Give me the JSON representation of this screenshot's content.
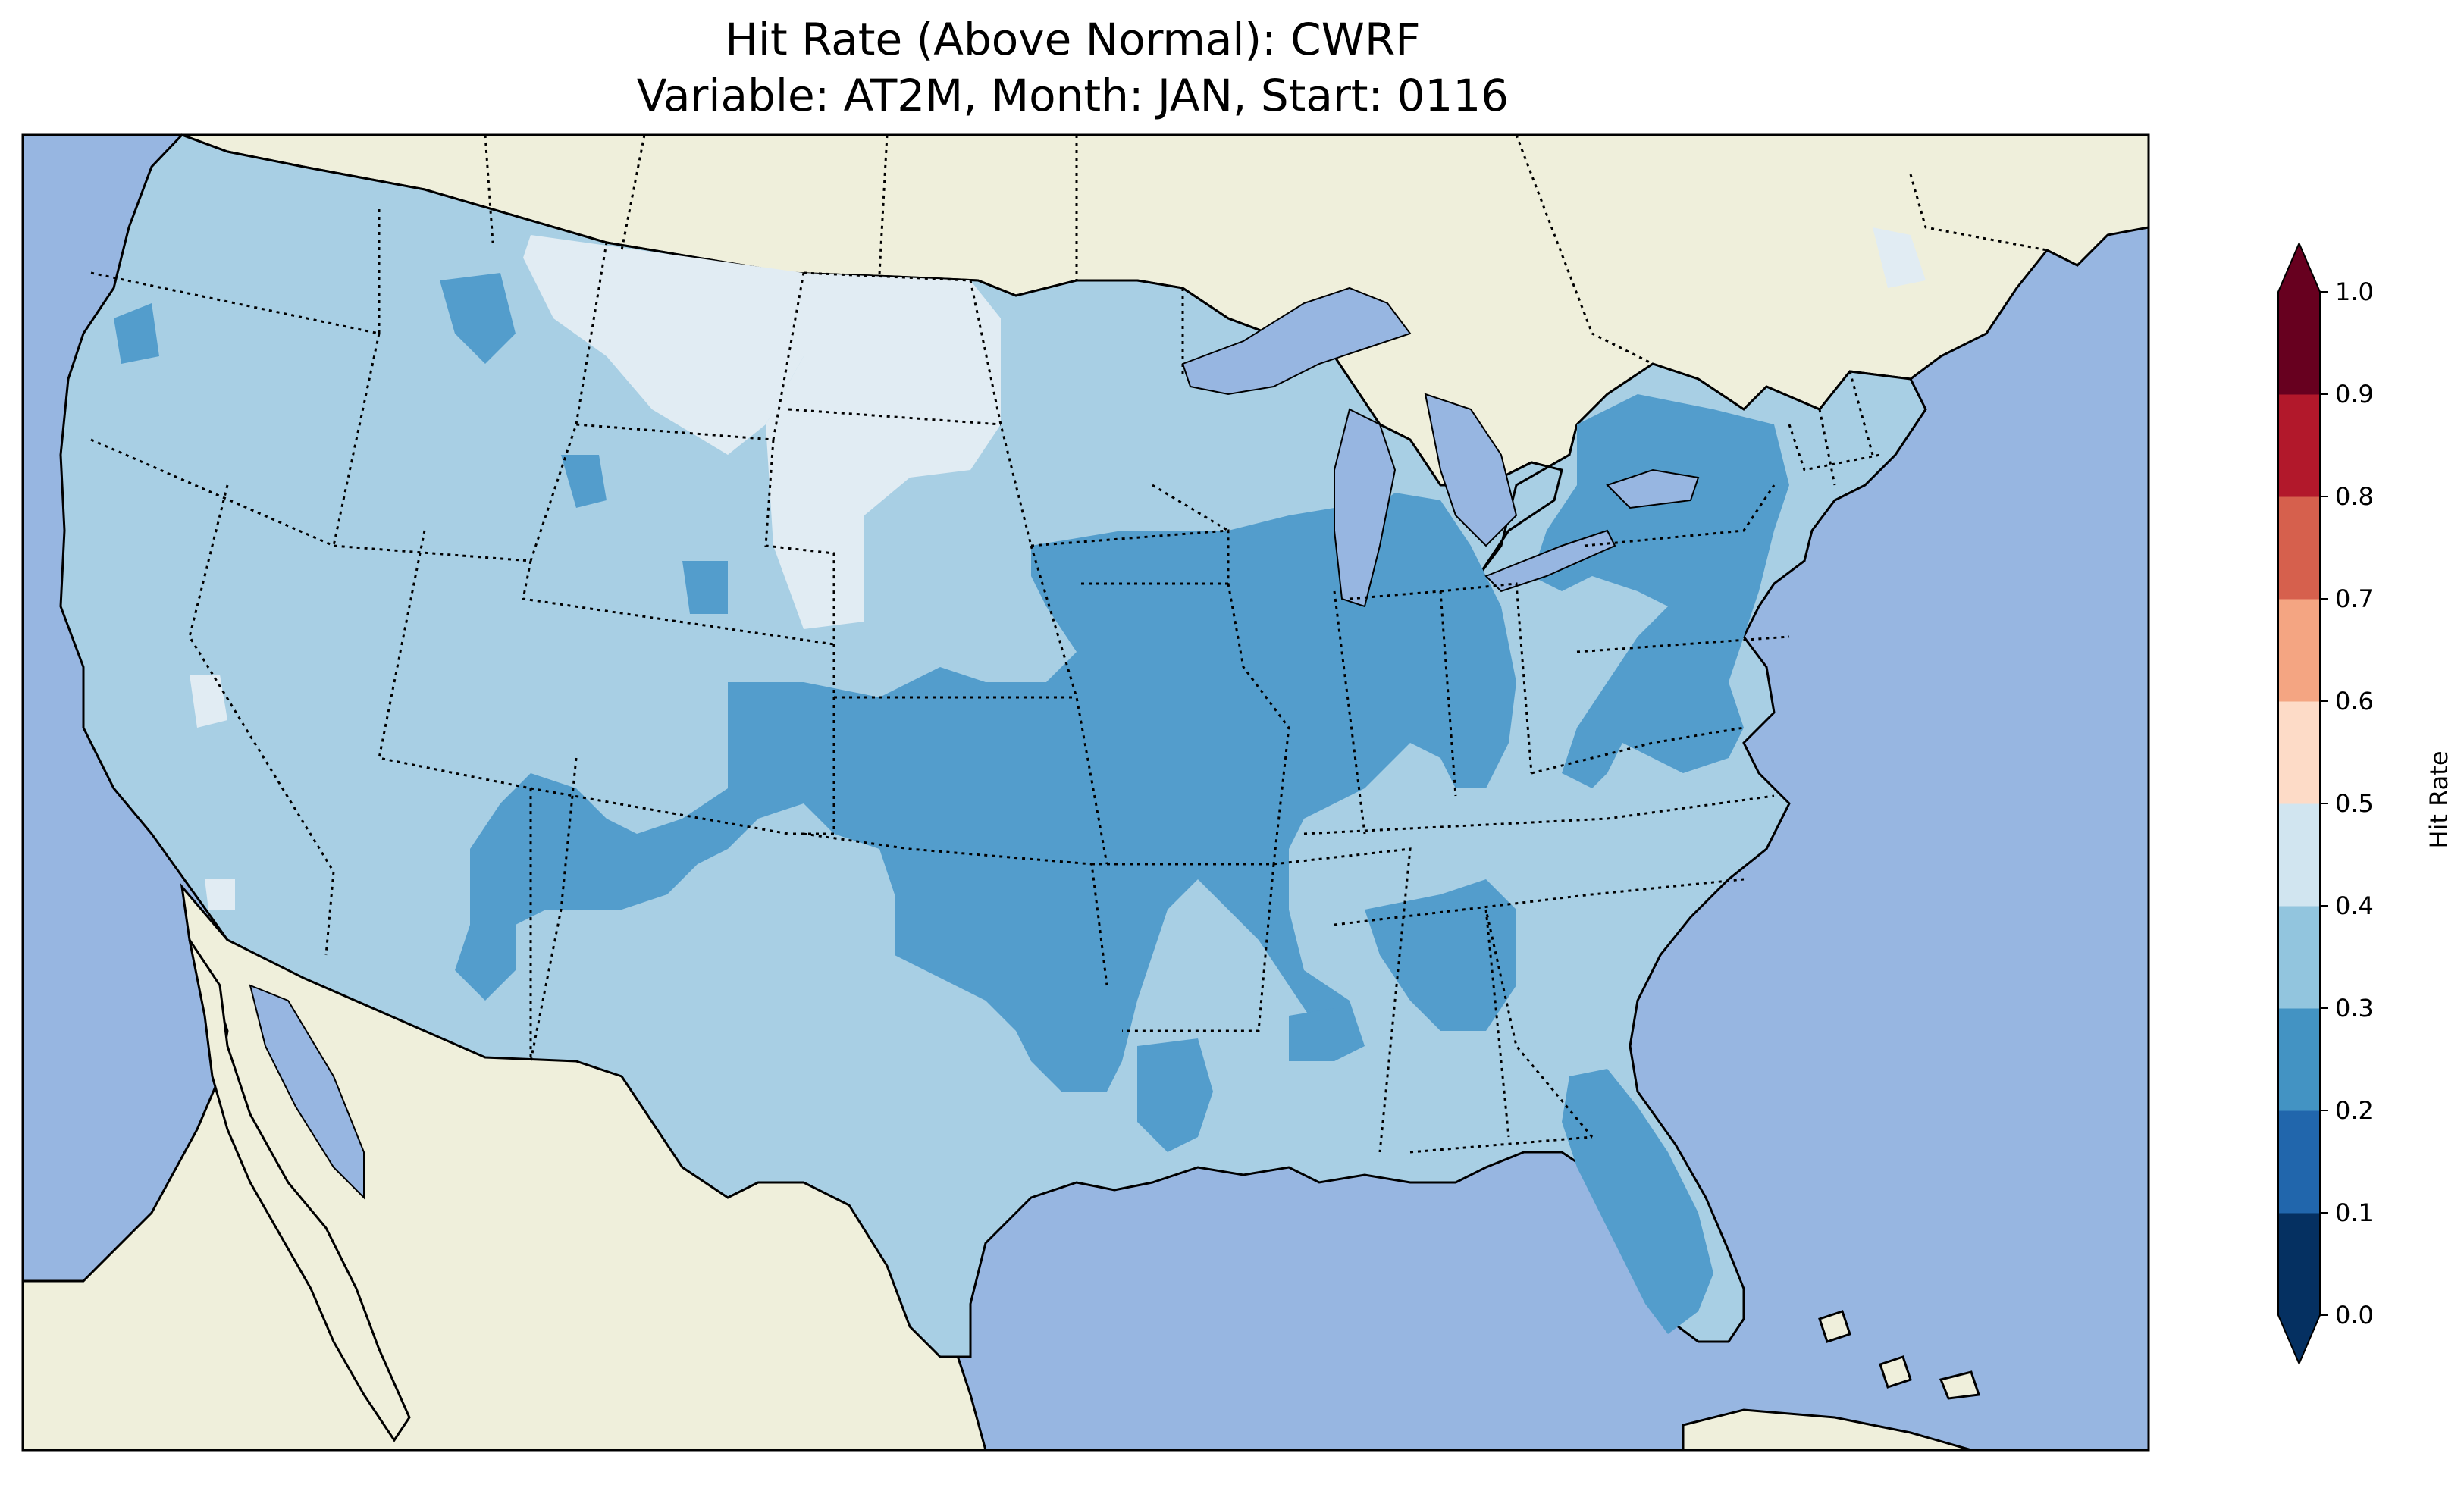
{
  "title": "Hit Rate (Above Normal): CWRF",
  "subtitle": "Variable: AT2M, Month: JAN, Start: 0116",
  "colorbar": {
    "label": "Hit Rate",
    "ticks": [
      "0.0",
      "0.1",
      "0.2",
      "0.3",
      "0.4",
      "0.5",
      "0.6",
      "0.7",
      "0.8",
      "0.9",
      "1.0"
    ],
    "colors": [
      "#053061",
      "#2166ac",
      "#4393c3",
      "#92c5de",
      "#d1e5f0",
      "#fddbc7",
      "#f4a582",
      "#d6604d",
      "#b2182b",
      "#67001f"
    ],
    "extend": "both"
  },
  "map_colors": {
    "ocean": "#97b6e1",
    "land": "#efefdb",
    "band_0_2_0_3": "#539dcc",
    "band_0_3_0_4": "#a8cfe4",
    "band_0_4_0_5": "#e1ecf3"
  },
  "map_extent": {
    "lon": [
      -126,
      -64
    ],
    "lat": [
      23,
      50
    ]
  }
}
